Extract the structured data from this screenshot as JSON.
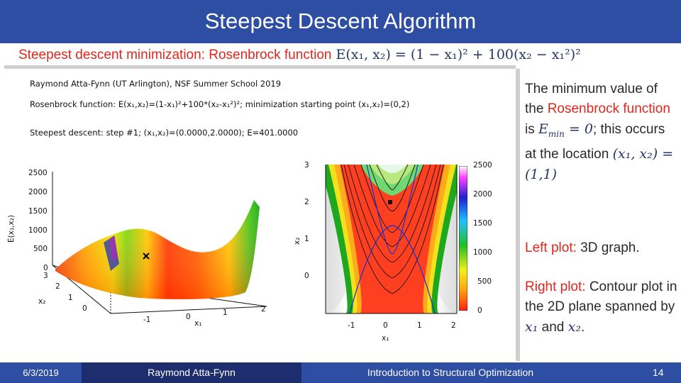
{
  "slide": {
    "title": "Steepest Descent Algorithm",
    "subtitle_text": "Steepest descent minimization: Rosenbrock function",
    "subtitle_equation": "E(x₁, x₂) = (1 − x₁)² + 100(x₂ − x₁²)²"
  },
  "figure": {
    "header_line1": "Raymond Atta-Fynn (UT Arlington), NSF Summer School 2019",
    "header_line2": "Rosenbrock function: E(x₁,x₂)=(1-x₁)²+100*(x₂-x₁²)²; minimization starting point (x₁,x₂)=(0,2)",
    "header_line3": "Steepest descent: step #1;  (x₁,x₂)=(0.0000,2.0000);  E=401.0000",
    "plot3d": {
      "zlabel": "E(x₁,x₂)",
      "xlabel": "x₁",
      "ylabel": "x₂",
      "z_ticks": [
        "2500",
        "2000",
        "1500",
        "1000",
        "500",
        "0"
      ],
      "x_ticks": [
        "-1",
        "0",
        "1",
        "2"
      ],
      "y_ticks": [
        "3",
        "2",
        "1",
        "0"
      ]
    },
    "contour": {
      "xlabel": "x₁",
      "ylabel": "x₂",
      "x_ticks": [
        "-1",
        "0",
        "1",
        "2"
      ],
      "y_ticks": [
        "3",
        "2",
        "1",
        "0"
      ],
      "colorbar_ticks": [
        "2500",
        "2000",
        "1500",
        "1000",
        "500",
        "0"
      ]
    },
    "marker_point": {
      "x1": 0,
      "x2": 2
    }
  },
  "sidebar": {
    "p1_a": "The minimum value of the ",
    "p1_red": "Rosenbrock function",
    "p1_b": " is ",
    "p1_math1": "E",
    "p1_math1_sub": "min",
    "p1_math1_rest": " = 0",
    "p1_c": ";  this occurs at the location ",
    "p1_math2": "(x₁, x₂) = (1,1)",
    "p2_red": "Left plot:",
    "p2_rest": " 3D graph.",
    "p3_red": "Right plot:",
    "p3_rest": " Contour plot in the 2D plane spanned by ",
    "p3_math_a": "x₁",
    "p3_and": " and ",
    "p3_math_b": "x₂",
    "p3_end": "."
  },
  "footer": {
    "date": "6/3/2019",
    "author": "Raymond Atta-Fynn",
    "course": "Introduction to Structural Optimization",
    "page": "14"
  },
  "colors": {
    "title_bar": "#2d4ea3",
    "accent_red": "#e0261d",
    "math_blue": "#26366b"
  }
}
